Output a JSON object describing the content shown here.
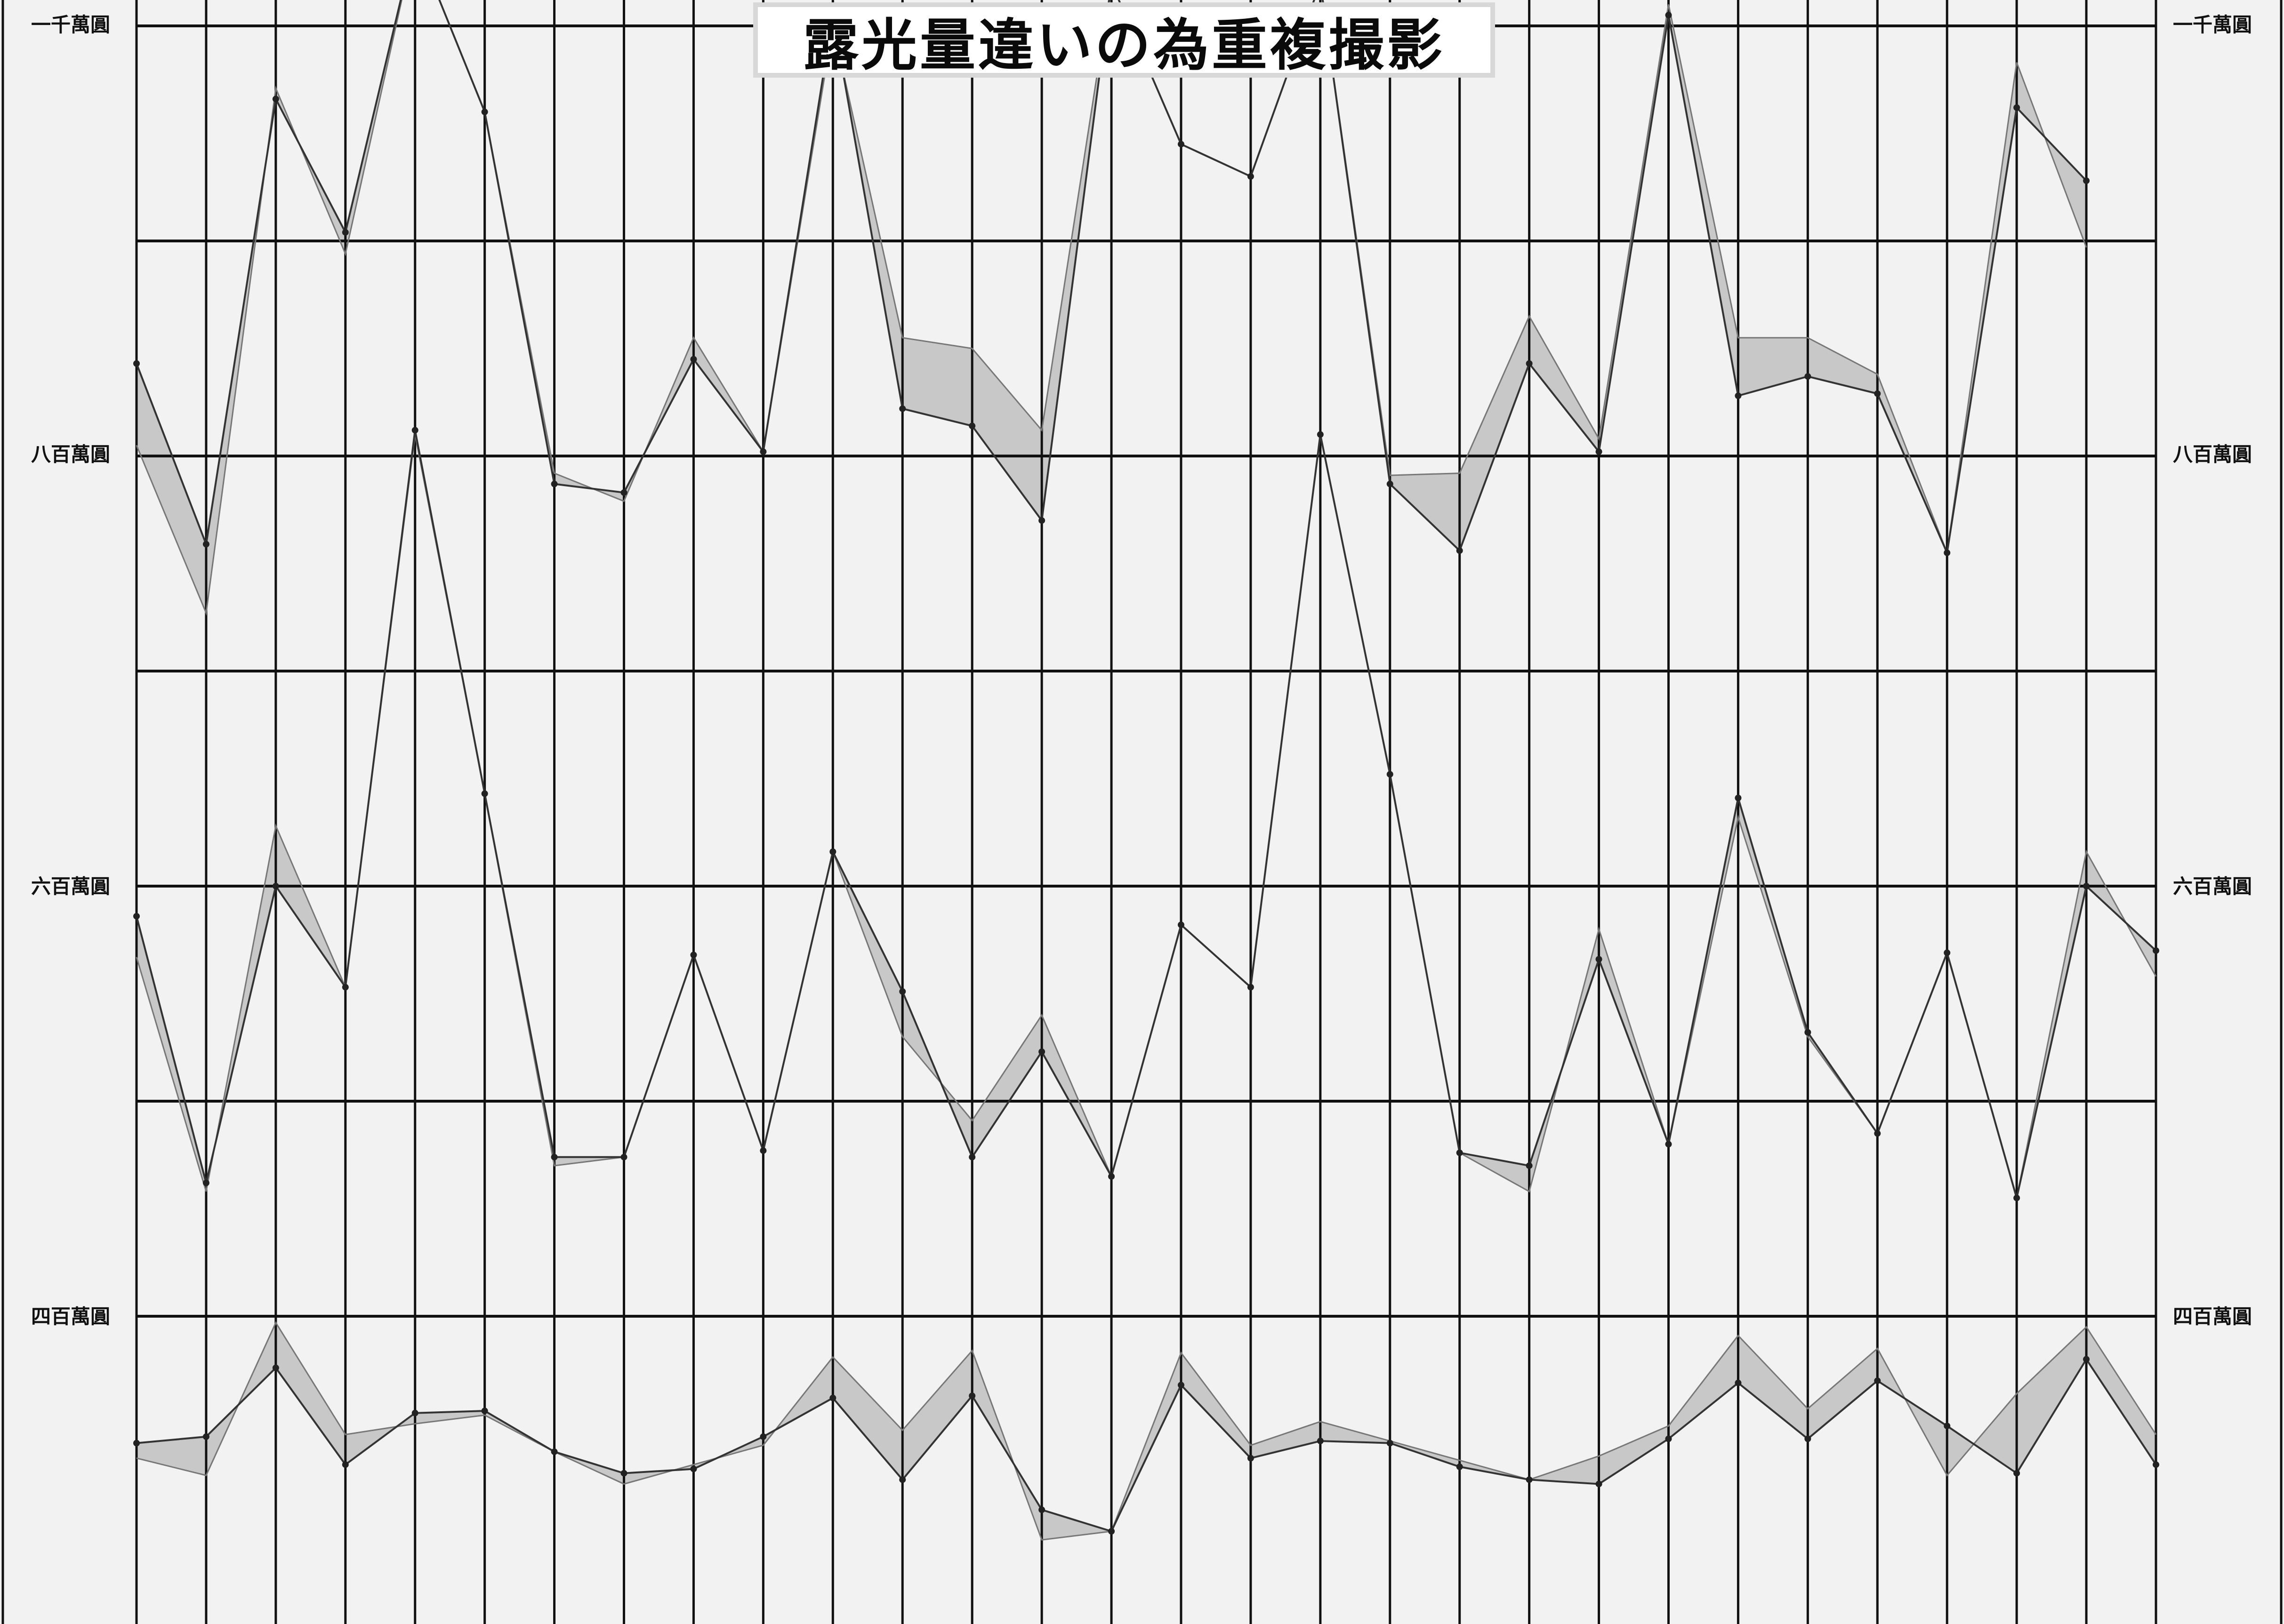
{
  "title": "露光量違いの為重複撮影",
  "y_labels": {
    "l1000": "一千萬圓",
    "l800": "八百萬圓",
    "l600": "六百萬圓",
    "l400": "四百萬圓"
  },
  "colors": {
    "background": "#f2f2f2",
    "grid": "#111111",
    "band_fill": "#b9b9b9",
    "line": "#333333"
  },
  "chart_data": {
    "type": "line",
    "title": "露光量違いの為重複撮影",
    "ylim": [
      320,
      1010
    ],
    "y_ticks": [
      {
        "value": 1000,
        "label": "一千萬圓"
      },
      {
        "value": 800,
        "label": "八百萬圓"
      },
      {
        "value": 600,
        "label": "六百萬圓"
      },
      {
        "value": 400,
        "label": "四百萬圓"
      }
    ],
    "grid": true,
    "note_on_series": "Each series is drawn twice (light and dark exposure); the shaded band fills the area between the two traces.",
    "series": [
      {
        "dark": [
          843,
          759,
          966,
          904,
          1040,
          960,
          787,
          783,
          845,
          802,
          1005,
          822,
          814,
          770,
          1020,
          945,
          930,
          1020,
          787,
          756,
          843,
          802,
          1005,
          828,
          837,
          829,
          755,
          962,
          928
        ],
        "light": [
          805,
          727,
          971,
          894,
          1040,
          960,
          792,
          779,
          855,
          802,
          1000,
          855,
          850,
          812,
          1020,
          945,
          930,
          1020,
          791,
          792,
          865,
          808,
          1010,
          855,
          855,
          838,
          755,
          983,
          897
        ]
      },
      {
        "dark": [
          586,
          462,
          600,
          553,
          812,
          643,
          474,
          474,
          568,
          477,
          616,
          551,
          474,
          523,
          465,
          582,
          553,
          810,
          652,
          476,
          470,
          566,
          480,
          641,
          532,
          485,
          569,
          455,
          600,
          570
        ],
        "light": [
          567,
          458,
          628,
          553,
          810,
          643,
          470,
          474,
          568,
          477,
          616,
          530,
          491,
          540,
          465,
          582,
          553,
          810,
          652,
          476,
          458,
          580,
          480,
          632,
          530,
          485,
          569,
          455,
          616,
          558
        ]
      },
      {
        "dark": [
          341,
          344,
          376,
          331,
          355,
          356,
          337,
          327,
          329,
          344,
          362,
          324,
          363,
          310,
          300,
          368,
          334,
          342,
          341,
          330,
          324,
          322,
          343,
          369,
          343,
          370,
          349,
          327,
          380,
          331
        ],
        "light": [
          334,
          326,
          397,
          345,
          350,
          354,
          337,
          322,
          331,
          340,
          381,
          347,
          384,
          296,
          300,
          383,
          340,
          351,
          342,
          333,
          324,
          335,
          349,
          391,
          357,
          385,
          326,
          364,
          395,
          345
        ]
      }
    ]
  }
}
